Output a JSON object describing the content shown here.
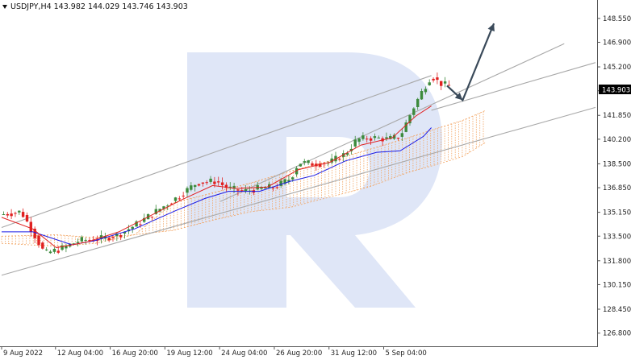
{
  "symbol_bar": {
    "symbol": "USDJPY,H4",
    "open": "143.982",
    "high": "144.029",
    "low": "143.746",
    "close": "143.903"
  },
  "price_scale": {
    "labels": [
      "148.550",
      "146.900",
      "145.200",
      "143.550",
      "141.850",
      "140.200",
      "138.500",
      "136.850",
      "135.150",
      "133.500",
      "131.800",
      "130.150",
      "128.450",
      "126.800"
    ],
    "current_price": "143.903",
    "current_price_bg": "#000000"
  },
  "time_axis": {
    "labels": [
      "9 Aug 2022",
      "12 Aug 04:00",
      "16 Aug 20:00",
      "19 Aug 12:00",
      "24 Aug 04:00",
      "26 Aug 20:00",
      "31 Aug 12:00",
      "5 Sep 04:00"
    ]
  },
  "colors": {
    "bull_candle": "#3c8a3c",
    "bear_candle": "#e02020",
    "tenkan": "#e02020",
    "kijun": "#1a1ae6",
    "cloud": "#f2a15c",
    "channel_lines": "#a8a8a8",
    "forecast_arrow": "#3a4a5a",
    "watermark": "#dfe6f7"
  },
  "watermark_icon": "roboforex-r-logo-watermark",
  "chart_data": {
    "type": "candlestick",
    "symbol": "USDJPY",
    "timeframe": "H4",
    "ylim": [
      126.0,
      149.6
    ],
    "y_ticks": [
      148.55,
      146.9,
      145.2,
      143.55,
      141.85,
      140.2,
      138.5,
      136.85,
      135.15,
      133.5,
      131.8,
      130.15,
      128.45,
      126.8
    ],
    "last_price": 143.903,
    "price_points": [
      {
        "t": 0,
        "p": 135.0
      },
      {
        "t": 5,
        "p": 135.2
      },
      {
        "t": 9,
        "p": 133.3
      },
      {
        "t": 11,
        "p": 132.3
      },
      {
        "t": 15,
        "p": 132.6
      },
      {
        "t": 20,
        "p": 133.2
      },
      {
        "t": 25,
        "p": 133.3
      },
      {
        "t": 30,
        "p": 133.6
      },
      {
        "t": 35,
        "p": 134.4
      },
      {
        "t": 40,
        "p": 135.3
      },
      {
        "t": 45,
        "p": 136.2
      },
      {
        "t": 50,
        "p": 137.2
      },
      {
        "t": 55,
        "p": 137.3
      },
      {
        "t": 58,
        "p": 136.8
      },
      {
        "t": 62,
        "p": 136.6
      },
      {
        "t": 66,
        "p": 136.8
      },
      {
        "t": 70,
        "p": 136.9
      },
      {
        "t": 74,
        "p": 137.5
      },
      {
        "t": 76,
        "p": 138.6
      },
      {
        "t": 80,
        "p": 138.5
      },
      {
        "t": 84,
        "p": 138.6
      },
      {
        "t": 88,
        "p": 139.2
      },
      {
        "t": 91,
        "p": 140.2
      },
      {
        "t": 95,
        "p": 140.3
      },
      {
        "t": 99,
        "p": 140.2
      },
      {
        "t": 102,
        "p": 140.4
      },
      {
        "t": 104,
        "p": 141.6
      },
      {
        "t": 106,
        "p": 142.7
      },
      {
        "t": 108,
        "p": 143.7
      },
      {
        "t": 110,
        "p": 144.6
      },
      {
        "t": 112,
        "p": 144.1
      },
      {
        "t": 114,
        "p": 143.9
      }
    ],
    "tenkan_points": [
      {
        "t": 0,
        "p": 134.8
      },
      {
        "t": 8,
        "p": 134.0
      },
      {
        "t": 14,
        "p": 132.7
      },
      {
        "t": 22,
        "p": 133.1
      },
      {
        "t": 30,
        "p": 133.8
      },
      {
        "t": 38,
        "p": 134.9
      },
      {
        "t": 46,
        "p": 136.0
      },
      {
        "t": 54,
        "p": 137.0
      },
      {
        "t": 60,
        "p": 136.8
      },
      {
        "t": 68,
        "p": 136.9
      },
      {
        "t": 76,
        "p": 138.1
      },
      {
        "t": 84,
        "p": 138.6
      },
      {
        "t": 92,
        "p": 139.8
      },
      {
        "t": 100,
        "p": 140.3
      },
      {
        "t": 106,
        "p": 141.8
      },
      {
        "t": 110,
        "p": 142.5
      }
    ],
    "kijun_points": [
      {
        "t": 0,
        "p": 133.8
      },
      {
        "t": 8,
        "p": 133.8
      },
      {
        "t": 18,
        "p": 132.9
      },
      {
        "t": 24,
        "p": 133.2
      },
      {
        "t": 34,
        "p": 134.0
      },
      {
        "t": 44,
        "p": 135.2
      },
      {
        "t": 52,
        "p": 136.1
      },
      {
        "t": 58,
        "p": 136.6
      },
      {
        "t": 66,
        "p": 136.6
      },
      {
        "t": 74,
        "p": 137.3
      },
      {
        "t": 80,
        "p": 137.7
      },
      {
        "t": 88,
        "p": 138.7
      },
      {
        "t": 96,
        "p": 139.3
      },
      {
        "t": 102,
        "p": 139.4
      },
      {
        "t": 108,
        "p": 140.4
      },
      {
        "t": 110,
        "p": 141.0
      }
    ],
    "cloud_points": [
      {
        "t": 0,
        "a": 133.5,
        "b": 133.0
      },
      {
        "t": 14,
        "a": 133.6,
        "b": 132.8
      },
      {
        "t": 24,
        "a": 133.4,
        "b": 133.0
      },
      {
        "t": 34,
        "a": 133.6,
        "b": 133.6
      },
      {
        "t": 44,
        "a": 135.8,
        "b": 133.9
      },
      {
        "t": 54,
        "a": 136.5,
        "b": 134.6
      },
      {
        "t": 64,
        "a": 137.2,
        "b": 135.2
      },
      {
        "t": 74,
        "a": 138.0,
        "b": 135.5
      },
      {
        "t": 84,
        "a": 138.7,
        "b": 136.2
      },
      {
        "t": 94,
        "a": 139.5,
        "b": 136.9
      },
      {
        "t": 104,
        "a": 140.3,
        "b": 137.9
      },
      {
        "t": 112,
        "a": 141.0,
        "b": 138.5
      },
      {
        "t": 118,
        "a": 141.5,
        "b": 139.0
      },
      {
        "t": 124,
        "a": 142.2,
        "b": 140.0
      }
    ],
    "channel_lines": [
      {
        "t1": 0,
        "p1": 134.1,
        "t2": 110,
        "p2": 144.6
      },
      {
        "t1": 0,
        "p1": 130.8,
        "t2": 152,
        "p2": 142.4
      },
      {
        "t1": 56,
        "p1": 135.9,
        "t2": 144,
        "p2": 146.8
      },
      {
        "t1": 110,
        "p1": 142.2,
        "t2": 152,
        "p2": 145.5
      }
    ],
    "forecast": {
      "start": {
        "t": 114,
        "p": 143.9
      },
      "pullback": {
        "t": 118,
        "p": 142.9
      },
      "target": {
        "t": 126,
        "p": 148.2
      }
    },
    "total_bars": 152
  }
}
